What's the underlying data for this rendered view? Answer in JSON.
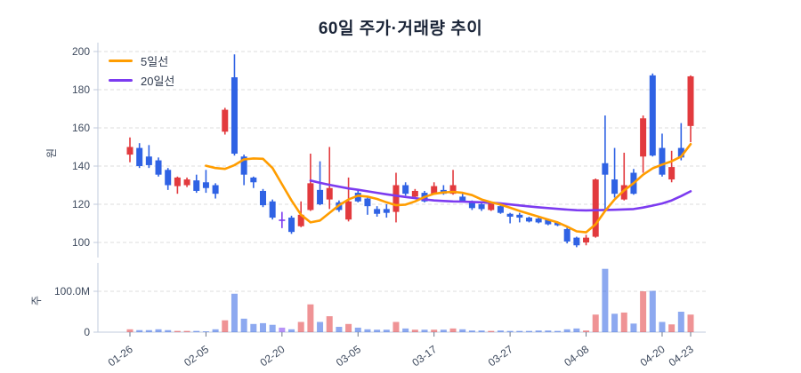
{
  "title": "60일 주가·거래량 추이",
  "legend": {
    "items": [
      {
        "label": "5일선",
        "color": "#ff9d00"
      },
      {
        "label": "20일선",
        "color": "#7c3bf0"
      }
    ]
  },
  "price_axis": {
    "unit_label": "원",
    "ticks": [
      100,
      120,
      140,
      160,
      180,
      200
    ]
  },
  "volume_axis": {
    "unit_label": "주",
    "ticks": [
      {
        "label": "0",
        "value": 0
      },
      {
        "label": "100.0M",
        "value": 100
      }
    ]
  },
  "colors": {
    "up": "#e23a3e",
    "down": "#2f62e4",
    "doji": "#7c3bf0",
    "ma5": "#ff9d00",
    "ma20": "#7c3bf0",
    "grid": "#dcdcdc",
    "axis_line": "#c2cbdc",
    "tick_mark": "#6b7689",
    "text": "#3e4a5e",
    "title": "#1b2538"
  },
  "chart_data": {
    "type": "candlestick",
    "title": "60일 주가·거래량 추이",
    "legend_entries": [
      "5일선",
      "20일선"
    ],
    "ylabel_price": "원",
    "ylabel_volume": "주",
    "price_ylim": [
      95,
      202
    ],
    "price_grid_ticks": [
      100,
      120,
      140,
      160,
      180,
      200
    ],
    "volume_grid_tick_label": "100.0M",
    "x_tick_labels": [
      "01-26",
      "02-05",
      "02-20",
      "03-05",
      "03-17",
      "03-27",
      "04-08",
      "04-20",
      "04-23"
    ],
    "x_tick_indices": [
      0,
      8,
      16,
      24,
      32,
      40,
      48,
      56,
      59
    ],
    "candles_ohlc": [
      [
        146,
        155,
        142,
        150
      ],
      [
        149.5,
        152,
        139,
        140
      ],
      [
        145,
        151,
        139,
        140.5
      ],
      [
        143,
        144.5,
        134.5,
        135.5
      ],
      [
        138,
        139,
        127.5,
        130
      ],
      [
        129.5,
        134.5,
        125.5,
        134
      ],
      [
        130,
        134,
        129,
        133
      ],
      [
        132.5,
        135.5,
        126,
        127
      ],
      [
        131.5,
        138,
        126,
        128.5
      ],
      [
        130,
        131,
        123,
        125.5
      ],
      [
        158,
        170.5,
        156.5,
        169.5
      ],
      [
        186.5,
        198.5,
        145.5,
        146.5
      ],
      [
        145,
        146,
        130,
        135.5
      ],
      [
        134,
        134.5,
        128.5,
        131.5
      ],
      [
        127,
        128,
        118.5,
        119.5
      ],
      [
        121.5,
        122.5,
        112,
        113
      ],
      [
        112,
        116,
        107.5,
        112
      ],
      [
        113,
        114,
        104.5,
        105.5
      ],
      [
        108.5,
        121.5,
        108,
        114.5
      ],
      [
        117,
        146.5,
        116.5,
        131
      ],
      [
        127.5,
        142.5,
        119.5,
        120
      ],
      [
        122.5,
        150,
        117.5,
        128.5
      ],
      [
        121,
        122,
        116,
        117
      ],
      [
        112,
        134,
        111,
        121.5
      ],
      [
        126,
        128,
        121,
        121.5
      ],
      [
        123,
        124,
        114.5,
        119
      ],
      [
        117.5,
        119,
        113.5,
        115
      ],
      [
        117.5,
        120,
        113,
        115.5
      ],
      [
        116,
        136.5,
        110.5,
        130
      ],
      [
        130,
        131.5,
        124.5,
        125.5
      ],
      [
        124,
        128,
        123.5,
        127
      ],
      [
        126,
        127,
        121,
        121.5
      ],
      [
        125.5,
        131.5,
        125,
        129.5
      ],
      [
        127.5,
        130,
        125,
        125.5
      ],
      [
        125.5,
        138,
        125,
        130
      ],
      [
        124,
        126,
        121,
        121.5
      ],
      [
        121.5,
        122,
        117,
        118
      ],
      [
        120,
        121,
        116.5,
        117.5
      ],
      [
        117,
        121,
        116.5,
        120.5
      ],
      [
        119,
        120,
        115,
        115.5
      ],
      [
        115,
        115.5,
        110,
        113.5
      ],
      [
        114.5,
        115.5,
        110.5,
        113
      ],
      [
        113,
        113.5,
        110.5,
        111
      ],
      [
        112.5,
        113.5,
        110,
        110.5
      ],
      [
        112,
        112.5,
        109,
        109.5
      ],
      [
        110.5,
        111,
        108.5,
        109
      ],
      [
        107,
        108,
        99.5,
        100.5
      ],
      [
        102.5,
        103,
        97.5,
        98.5
      ],
      [
        100,
        104,
        98.5,
        102.5
      ],
      [
        103,
        133.5,
        102.5,
        133
      ],
      [
        141.5,
        166.5,
        117,
        135.5
      ],
      [
        133,
        149.5,
        123.5,
        125.5
      ],
      [
        122.5,
        147,
        122,
        130
      ],
      [
        136.5,
        138.5,
        125,
        125.5
      ],
      [
        145,
        166.5,
        136.5,
        165
      ],
      [
        187.5,
        188.5,
        145,
        145.5
      ],
      [
        149.5,
        157,
        134.5,
        135.5
      ],
      [
        133,
        148,
        131.5,
        139.5
      ],
      [
        149.5,
        162.5,
        143,
        144.5
      ],
      [
        161,
        187.5,
        152.5,
        187
      ]
    ],
    "volume": {
      "type": "bar",
      "unit": "millions_of_shares",
      "values": [
        7,
        5,
        5,
        7,
        5,
        3,
        3,
        3,
        2,
        7,
        29,
        94,
        33,
        20,
        22,
        18,
        11,
        7,
        25,
        68,
        25,
        39,
        13,
        20,
        11,
        7,
        6,
        6,
        25,
        9,
        6,
        6,
        6,
        6,
        9,
        7,
        4,
        4,
        3,
        4,
        3,
        3,
        3,
        4,
        4,
        3,
        7,
        9,
        4,
        43,
        155,
        45,
        48,
        21,
        100,
        101,
        25,
        19,
        50,
        43
      ],
      "ylim": [
        0,
        160
      ]
    },
    "ma5": [
      null,
      null,
      null,
      null,
      null,
      null,
      null,
      null,
      140.2,
      139,
      138.5,
      140.5,
      143.5,
      144,
      143.8,
      139,
      130.5,
      122,
      114.5,
      110.5,
      111.5,
      115.5,
      119.5,
      122.5,
      124.5,
      124,
      122.8,
      121,
      119.5,
      119.8,
      121.5,
      123.8,
      125.5,
      126.2,
      126.5,
      126,
      124.8,
      122.5,
      121,
      119.8,
      118.2,
      116.5,
      115,
      113.5,
      112,
      110.5,
      108.3,
      105.8,
      105.3,
      109.5,
      116.5,
      122.5,
      127.3,
      131,
      135.5,
      138.8,
      140.8,
      142.5,
      145,
      151.5
    ],
    "ma20": [
      null,
      null,
      null,
      null,
      null,
      null,
      null,
      null,
      null,
      null,
      null,
      null,
      null,
      null,
      null,
      null,
      null,
      null,
      null,
      132.4,
      131.2,
      130.2,
      129.2,
      128.3,
      127.6,
      126.8,
      126,
      125.2,
      124.5,
      123.8,
      123.2,
      122.5,
      122,
      121.7,
      121.5,
      121.4,
      121.2,
      121,
      120.8,
      120.4,
      119.9,
      119.4,
      118.9,
      118.4,
      118,
      117.6,
      117.2,
      116.9,
      116.8,
      116.9,
      117,
      117.1,
      117.3,
      117.5,
      118.3,
      119.3,
      120.4,
      122,
      124.3,
      126.8
    ],
    "grid": "dashed",
    "legend_position": "top-left-inside"
  }
}
